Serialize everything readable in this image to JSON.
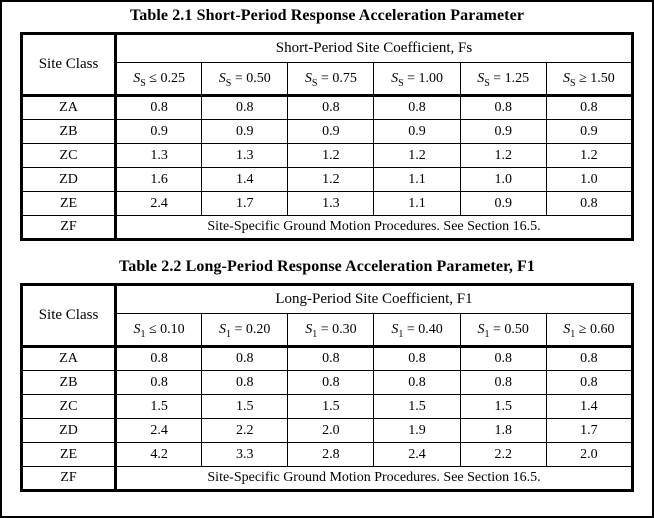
{
  "page": {
    "background": "#ffffff",
    "border_color": "#000000",
    "text_color": "#000000"
  },
  "tables": [
    {
      "title": "Table 2.1  Short-Period Response Acceleration Parameter",
      "corner_header": "Site Class",
      "span_header": "Short-Period Site Coefficient, Fs",
      "col_headers": [
        {
          "sym": "S",
          "sub": "S",
          "cond": "≤ 0.25"
        },
        {
          "sym": "S",
          "sub": "S",
          "cond": "= 0.50"
        },
        {
          "sym": "S",
          "sub": "S",
          "cond": "= 0.75"
        },
        {
          "sym": "S",
          "sub": "S",
          "cond": "= 1.00"
        },
        {
          "sym": "S",
          "sub": "S",
          "cond": "= 1.25"
        },
        {
          "sym": "S",
          "sub": "S",
          "cond": "≥ 1.50"
        }
      ],
      "rows": [
        {
          "site_class": "ZA",
          "values": [
            "0.8",
            "0.8",
            "0.8",
            "0.8",
            "0.8",
            "0.8"
          ]
        },
        {
          "site_class": "ZB",
          "values": [
            "0.9",
            "0.9",
            "0.9",
            "0.9",
            "0.9",
            "0.9"
          ]
        },
        {
          "site_class": "ZC",
          "values": [
            "1.3",
            "1.3",
            "1.2",
            "1.2",
            "1.2",
            "1.2"
          ]
        },
        {
          "site_class": "ZD",
          "values": [
            "1.6",
            "1.4",
            "1.2",
            "1.1",
            "1.0",
            "1.0"
          ]
        },
        {
          "site_class": "ZE",
          "values": [
            "2.4",
            "1.7",
            "1.3",
            "1.1",
            "0.9",
            "0.8"
          ]
        }
      ],
      "note_row": {
        "site_class": "ZF",
        "note": "Site-Specific Ground Motion Procedures. See Section 16.5."
      }
    },
    {
      "title": "Table 2.2 Long-Period Response Acceleration Parameter, F1",
      "corner_header": "Site Class",
      "span_header": "Long-Period Site Coefficient, F1",
      "col_headers": [
        {
          "sym": "S",
          "sub": "1",
          "cond": "≤ 0.10"
        },
        {
          "sym": "S",
          "sub": "1",
          "cond": "= 0.20"
        },
        {
          "sym": "S",
          "sub": "1",
          "cond": "= 0.30"
        },
        {
          "sym": "S",
          "sub": "1",
          "cond": "= 0.40"
        },
        {
          "sym": "S",
          "sub": "1",
          "cond": "= 0.50"
        },
        {
          "sym": "S",
          "sub": "1",
          "cond": "≥ 0.60"
        }
      ],
      "rows": [
        {
          "site_class": "ZA",
          "values": [
            "0.8",
            "0.8",
            "0.8",
            "0.8",
            "0.8",
            "0.8"
          ]
        },
        {
          "site_class": "ZB",
          "values": [
            "0.8",
            "0.8",
            "0.8",
            "0.8",
            "0.8",
            "0.8"
          ]
        },
        {
          "site_class": "ZC",
          "values": [
            "1.5",
            "1.5",
            "1.5",
            "1.5",
            "1.5",
            "1.4"
          ]
        },
        {
          "site_class": "ZD",
          "values": [
            "2.4",
            "2.2",
            "2.0",
            "1.9",
            "1.8",
            "1.7"
          ]
        },
        {
          "site_class": "ZE",
          "values": [
            "4.2",
            "3.3",
            "2.8",
            "2.4",
            "2.2",
            "2.0"
          ]
        }
      ],
      "note_row": {
        "site_class": "ZF",
        "note": "Site-Specific Ground Motion Procedures. See Section 16.5."
      }
    }
  ]
}
